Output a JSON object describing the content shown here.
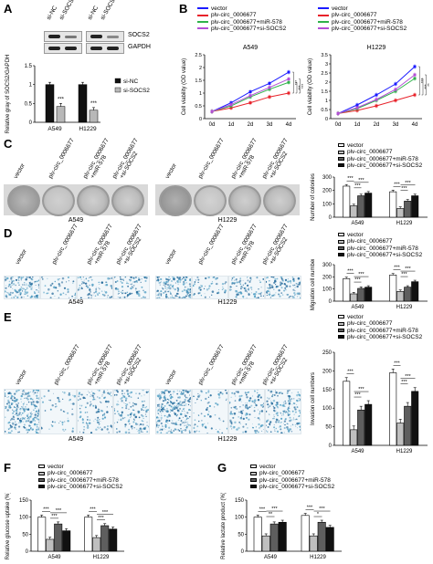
{
  "labels": {
    "A": "A",
    "B": "B",
    "C": "C",
    "D": "D",
    "E": "E",
    "F": "F",
    "G": "G"
  },
  "blot": {
    "lanes_left": [
      "si-NC",
      "si-SOCS2"
    ],
    "lanes_right": [
      "si-NC",
      "si-SOCS2"
    ],
    "proteins": [
      "SOCS2",
      "GAPDH"
    ]
  },
  "series_names": {
    "vector": "vector",
    "circ": "plv-circ_0006677",
    "mir": "plv-circ_0006677+miR-578",
    "si": "plv-circ_0006677+si-SOCS2"
  },
  "colors": {
    "vector": "#1a1aff",
    "circ": "#e8222a",
    "mir": "#2fb24a",
    "si": "#b34fd6",
    "bar_white": "#ffffff",
    "bar_light": "#bfbfbf",
    "bar_gray": "#5e5e5e",
    "bar_black": "#111111"
  },
  "cells": [
    "A549",
    "H1229"
  ],
  "image_lanes": [
    "vector",
    "plv-circ_0006677",
    "plv-circ_0006677\n+miR-578",
    "plv-circ_0006677\n+si-SOCS2"
  ],
  "chart_data": [
    {
      "id": "A",
      "type": "bar",
      "ylabel": "Relative gray of SOCS2/GAPDH",
      "ylim": [
        0,
        1.5
      ],
      "yticks": [
        0,
        0.5,
        1,
        1.5
      ],
      "categories": [
        "A549",
        "H1229"
      ],
      "series": [
        {
          "name": "si-NC",
          "values": [
            1.0,
            1.0
          ],
          "err": [
            0.06,
            0.06
          ]
        },
        {
          "name": "si-SOCS2",
          "values": [
            0.42,
            0.32
          ],
          "err": [
            0.08,
            0.07
          ]
        }
      ],
      "annotations": [
        "***",
        "***"
      ]
    },
    {
      "id": "B1",
      "type": "line",
      "title": "A549",
      "ylabel": "Cell viability (OD value)",
      "ylim": [
        0,
        2.5
      ],
      "yticks": [
        0,
        0.5,
        1,
        1.5,
        2,
        2.5
      ],
      "x": [
        "0d",
        "1d",
        "2d",
        "3d",
        "4d"
      ],
      "series": [
        {
          "name": "vector",
          "values": [
            0.28,
            0.62,
            1.05,
            1.38,
            1.82
          ]
        },
        {
          "name": "plv-circ_0006677",
          "values": [
            0.28,
            0.42,
            0.62,
            0.85,
            1.0
          ]
        },
        {
          "name": "plv-circ_0006677+miR-578",
          "values": [
            0.28,
            0.5,
            0.85,
            1.15,
            1.42
          ]
        },
        {
          "name": "plv-circ_0006677+si-SOCS2",
          "values": [
            0.28,
            0.55,
            0.9,
            1.22,
            1.55
          ]
        }
      ],
      "annotations": [
        "***",
        "***",
        "***"
      ]
    },
    {
      "id": "B2",
      "type": "line",
      "title": "H1229",
      "ylabel": "Cell viability (OD value)",
      "ylim": [
        0,
        3.5
      ],
      "yticks": [
        0,
        0.5,
        1,
        1.5,
        2,
        2.5,
        3,
        3.5
      ],
      "x": [
        "0d",
        "1d",
        "2d",
        "3d",
        "4d"
      ],
      "series": [
        {
          "name": "vector",
          "values": [
            0.28,
            0.75,
            1.3,
            1.9,
            2.85
          ]
        },
        {
          "name": "plv-circ_0006677",
          "values": [
            0.28,
            0.45,
            0.7,
            1.0,
            1.3
          ]
        },
        {
          "name": "plv-circ_0006677+miR-578",
          "values": [
            0.28,
            0.55,
            1.0,
            1.5,
            2.2
          ]
        },
        {
          "name": "plv-circ_0006677+si-SOCS2",
          "values": [
            0.28,
            0.6,
            1.05,
            1.6,
            2.4
          ]
        }
      ],
      "annotations": [
        "***",
        "***",
        "**"
      ]
    },
    {
      "id": "C",
      "type": "bar",
      "ylabel": "Number of colonies",
      "ylim": [
        0,
        300
      ],
      "yticks": [
        0,
        100,
        200,
        300
      ],
      "categories": [
        "A549",
        "H1229"
      ],
      "series": [
        {
          "name": "vector",
          "values": [
            232,
            190
          ]
        },
        {
          "name": "plv-circ_0006677",
          "values": [
            85,
            65
          ]
        },
        {
          "name": "plv-circ_0006677+miR-578",
          "values": [
            160,
            120
          ]
        },
        {
          "name": "plv-circ_0006677+si-SOCS2",
          "values": [
            180,
            160
          ]
        }
      ],
      "annotations": [
        "***",
        "***",
        "***",
        "***",
        "***",
        "***"
      ]
    },
    {
      "id": "D",
      "type": "bar",
      "ylabel": "Migration cell numbers",
      "ylim": [
        0,
        300
      ],
      "yticks": [
        0,
        100,
        200,
        300
      ],
      "categories": [
        "A549",
        "H1229"
      ],
      "series": [
        {
          "name": "vector",
          "values": [
            185,
            215
          ]
        },
        {
          "name": "plv-circ_0006677",
          "values": [
            60,
            80
          ]
        },
        {
          "name": "plv-circ_0006677+miR-578",
          "values": [
            105,
            115
          ]
        },
        {
          "name": "plv-circ_0006677+si-SOCS2",
          "values": [
            115,
            160
          ]
        }
      ],
      "annotations": [
        "***",
        "***",
        "***",
        "***",
        "***",
        "***"
      ]
    },
    {
      "id": "E",
      "type": "bar",
      "ylabel": "Invasion cell numbers",
      "ylim": [
        0,
        250
      ],
      "yticks": [
        0,
        50,
        100,
        150,
        200,
        250
      ],
      "categories": [
        "A549",
        "H1229"
      ],
      "series": [
        {
          "name": "vector",
          "values": [
            172,
            195
          ]
        },
        {
          "name": "plv-circ_0006677",
          "values": [
            42,
            60
          ]
        },
        {
          "name": "plv-circ_0006677+miR-578",
          "values": [
            95,
            105
          ]
        },
        {
          "name": "plv-circ_0006677+si-SOCS2",
          "values": [
            110,
            145
          ]
        }
      ],
      "annotations": [
        "***",
        "***",
        "***",
        "***",
        "***",
        "***"
      ]
    },
    {
      "id": "F",
      "type": "bar",
      "ylabel": "Relative glucose uptake (%)",
      "ylim": [
        0,
        150
      ],
      "yticks": [
        0,
        50,
        100,
        150
      ],
      "categories": [
        "A549",
        "H1229"
      ],
      "series": [
        {
          "name": "vector",
          "values": [
            100,
            100
          ]
        },
        {
          "name": "plv-circ_0006677",
          "values": [
            35,
            40
          ]
        },
        {
          "name": "plv-circ_0006677+miR-578",
          "values": [
            80,
            75
          ]
        },
        {
          "name": "plv-circ_0006677+si-SOCS2",
          "values": [
            60,
            65
          ]
        }
      ],
      "annotations": [
        "***",
        "***",
        "***",
        "***",
        "***",
        "***"
      ]
    },
    {
      "id": "G",
      "type": "bar",
      "ylabel": "Relative lactate product (%)",
      "ylim": [
        0,
        150
      ],
      "yticks": [
        0,
        50,
        100,
        150
      ],
      "categories": [
        "A549",
        "H1229"
      ],
      "series": [
        {
          "name": "vector",
          "values": [
            100,
            105
          ]
        },
        {
          "name": "plv-circ_0006677",
          "values": [
            45,
            45
          ]
        },
        {
          "name": "plv-circ_0006677+miR-578",
          "values": [
            80,
            85
          ]
        },
        {
          "name": "plv-circ_0006677+si-SOCS2",
          "values": [
            85,
            70
          ]
        }
      ],
      "annotations": [
        "***",
        "**",
        "***",
        "***",
        "*",
        "***"
      ]
    }
  ]
}
